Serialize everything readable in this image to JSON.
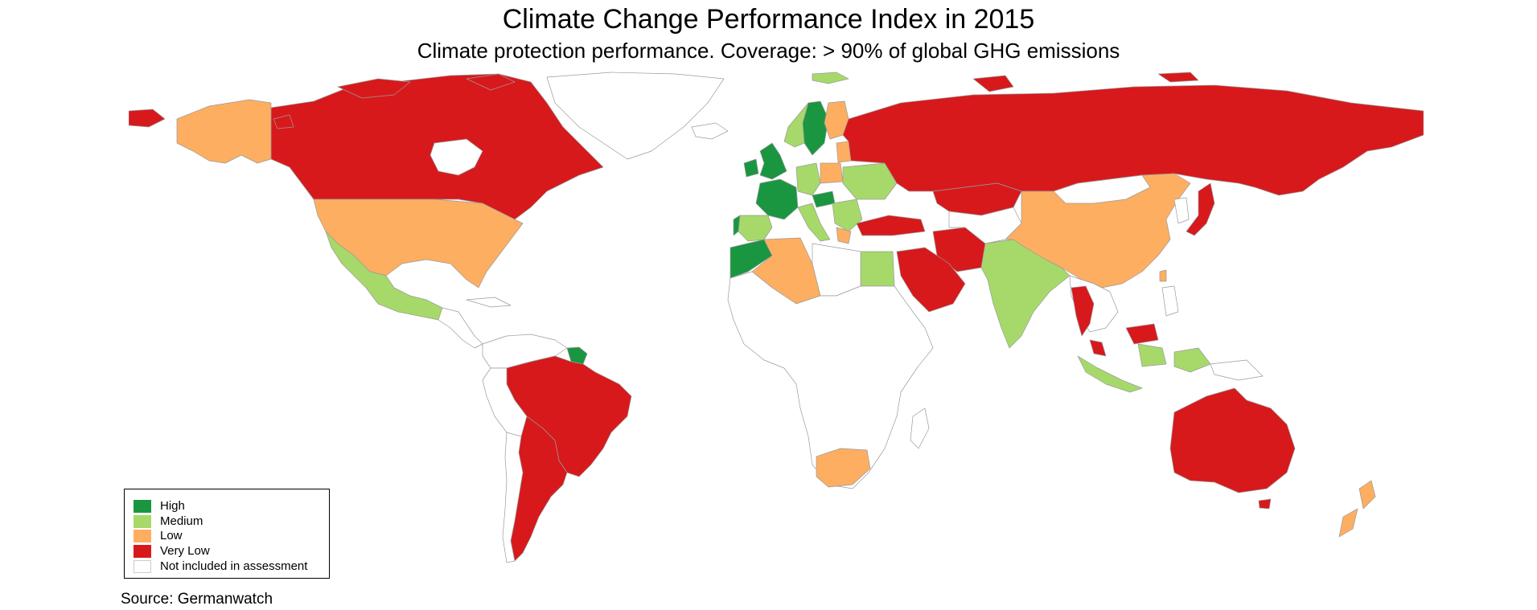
{
  "title": "Climate Change Performance Index in 2015",
  "subtitle": "Climate protection performance. Coverage: > 90% of global GHG emissions",
  "source": "Source: Germanwatch",
  "colors": {
    "high": "#1a9641",
    "medium": "#a6d96a",
    "low": "#fdae61",
    "very_low": "#d7191c",
    "not_included": "#ffffff",
    "border": "#9a9a9a"
  },
  "legend": [
    {
      "key": "high",
      "label": "High",
      "color": "#1a9641"
    },
    {
      "key": "medium",
      "label": "Medium",
      "color": "#a6d96a"
    },
    {
      "key": "low",
      "label": "Low",
      "color": "#fdae61"
    },
    {
      "key": "very_low",
      "label": "Very Low",
      "color": "#d7191c"
    },
    {
      "key": "not_included",
      "label": "Not included in assessment",
      "color": "#ffffff"
    }
  ],
  "map_data": {
    "type": "choropleth",
    "categories": [
      "High",
      "Medium",
      "Low",
      "Very Low",
      "Not included in assessment"
    ]
  }
}
